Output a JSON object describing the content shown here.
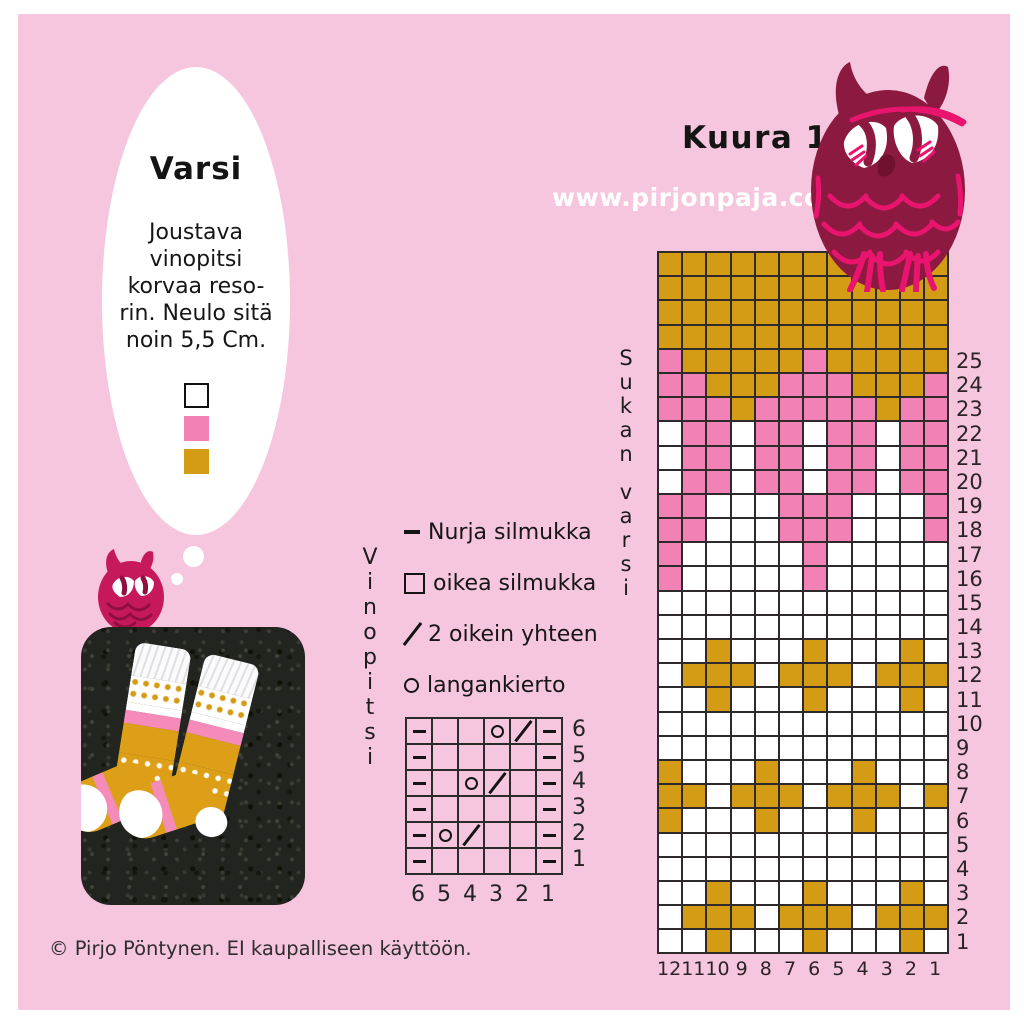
{
  "page": {
    "background": "#f5c6de",
    "frame": "#ffffff"
  },
  "header": {
    "title": "Kuura 1",
    "website": "www.pirjonpaja.com"
  },
  "bubble": {
    "title": "Varsi",
    "body_lines": [
      "Joustava",
      "vinopitsi",
      "korvaa reso-",
      "rin. Neulo sitä",
      "noin 5,5 Cm."
    ],
    "swatches": [
      {
        "name": "white-yarn",
        "color": "#ffffff"
      },
      {
        "name": "pink-yarn",
        "color": "#f282b6"
      },
      {
        "name": "gold-yarn",
        "color": "#d49c14"
      }
    ]
  },
  "legend": {
    "items": [
      {
        "symbol": "dash",
        "label": "Nurja silmukka"
      },
      {
        "symbol": "square",
        "label": "oikea silmukka"
      },
      {
        "symbol": "slash",
        "label": "2 oikein yhteen"
      },
      {
        "symbol": "circle",
        "label": "langankierto"
      }
    ]
  },
  "lace_chart": {
    "vertical_label": "Vinopitsi",
    "row_numbers": [
      "6",
      "5",
      "4",
      "3",
      "2",
      "1"
    ],
    "col_numbers": [
      "6",
      "5",
      "4",
      "3",
      "2",
      "1"
    ],
    "rows": [
      [
        "dash",
        "",
        "",
        "circle",
        "slash",
        "dash"
      ],
      [
        "dash",
        "",
        "",
        "",
        "",
        "dash"
      ],
      [
        "dash",
        "",
        "circle",
        "slash",
        "",
        "dash"
      ],
      [
        "dash",
        "",
        "",
        "",
        "",
        "dash"
      ],
      [
        "dash",
        "circle",
        "slash",
        "",
        "",
        "dash"
      ],
      [
        "dash",
        "",
        "",
        "",
        "",
        "dash"
      ]
    ]
  },
  "color_chart": {
    "vertical_label": "Sukan varsi",
    "palette": {
      "W": "#ffffff",
      "P": "#f282b6",
      "G": "#d49c14"
    },
    "col_numbers": [
      "12",
      "11",
      "10",
      "9",
      "8",
      "7",
      "6",
      "5",
      "4",
      "3",
      "2",
      "1"
    ],
    "top_rows": [
      "GGGGGGGGGGGG",
      "GGGGGGGGGGGG",
      "GGGGGGGGGGGG",
      "GGGGGGGGGGGG"
    ],
    "rows": [
      {
        "num": "25",
        "cells": "PGGGGGPGGGGG"
      },
      {
        "num": "24",
        "cells": "PPGGGPPPGGGP"
      },
      {
        "num": "23",
        "cells": "PPPGPPPPPGPP"
      },
      {
        "num": "22",
        "cells": "WPPWPPWPPWPP"
      },
      {
        "num": "21",
        "cells": "WPPWPPWPPWPP"
      },
      {
        "num": "20",
        "cells": "WPPWPPWPPWPP"
      },
      {
        "num": "19",
        "cells": "PPWWWPPPWWWP"
      },
      {
        "num": "18",
        "cells": "PPWWWPPPWWWP"
      },
      {
        "num": "17",
        "cells": "PWWWWWPWWWWW"
      },
      {
        "num": "16",
        "cells": "PWWWWWPWWWWW"
      },
      {
        "num": "15",
        "cells": "WWWWWWWWWWWW"
      },
      {
        "num": "14",
        "cells": "WWWWWWWWWWWW"
      },
      {
        "num": "13",
        "cells": "WWGWWWGWWWGW"
      },
      {
        "num": "12",
        "cells": "WGGGWGGGWGGG"
      },
      {
        "num": "11",
        "cells": "WWGWWWGWWWGW"
      },
      {
        "num": "10",
        "cells": "WWWWWWWWWWWW"
      },
      {
        "num": "9",
        "cells": "WWWWWWWWWWWW"
      },
      {
        "num": "8",
        "cells": "GWWWGWWWGWWW"
      },
      {
        "num": "7",
        "cells": "GGWGGGWGGGWG"
      },
      {
        "num": "6",
        "cells": "GWWWGWWWGWWW"
      },
      {
        "num": "5",
        "cells": "WWWWWWWWWWWW"
      },
      {
        "num": "4",
        "cells": "WWWWWWWWWWWW"
      },
      {
        "num": "3",
        "cells": "WWGWWWGWWWGW"
      },
      {
        "num": "2",
        "cells": "WGGGWGGGWGGG"
      },
      {
        "num": "1",
        "cells": "WWGWWWGWWWGW"
      }
    ]
  },
  "footer": {
    "copyright": "© Pirjo Pöntynen. EI kaupalliseen käyttöön."
  },
  "colors": {
    "background_pink": "#f5c6de",
    "chart_pink": "#f282b6",
    "chart_gold": "#d49c14",
    "owl_dark": "#8c1a40",
    "owl_bright": "#e8146e"
  }
}
